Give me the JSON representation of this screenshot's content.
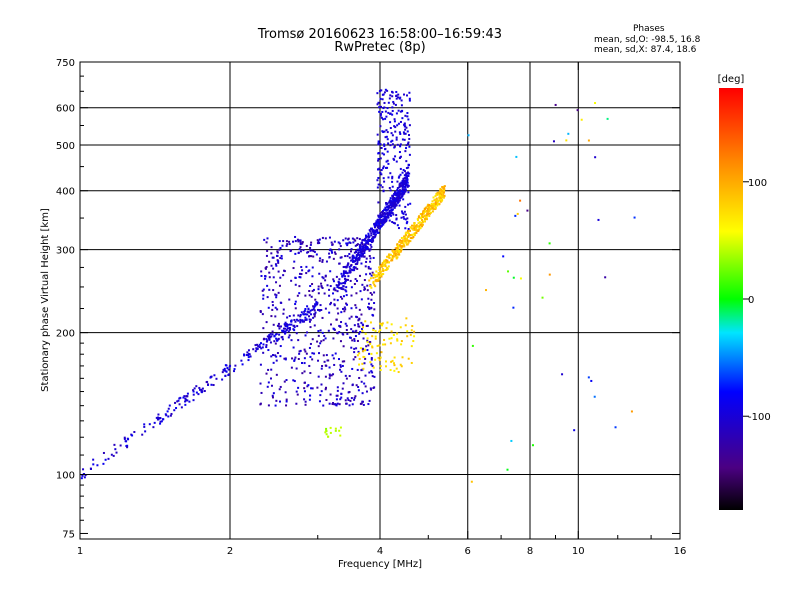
{
  "chart_data": {
    "type": "scatter",
    "title": "Tromsø 20160623 16:58:00–16:59:43",
    "subtitle": "RwPretec (8p)",
    "xlabel": "Frequency [MHz]",
    "ylabel": "Stationary phase Virtual Height [km]",
    "x_scale": "log",
    "y_scale": "log",
    "xlim": [
      1,
      16
    ],
    "ylim": [
      73,
      750
    ],
    "x_ticks": [
      1,
      2,
      4,
      6,
      8,
      10,
      16
    ],
    "y_ticks": [
      75,
      100,
      200,
      300,
      400,
      500,
      600,
      750
    ],
    "grid": true,
    "colorbar": {
      "label": "[deg]",
      "range": [
        -180,
        180
      ],
      "ticks": [
        -100,
        0,
        100
      ]
    },
    "phases_header": "Phases",
    "phases_stats": [
      "mean, sd,O: -98.5, 16.8",
      "mean, sd,X:  87.4, 18.6"
    ],
    "series": [
      {
        "mode": "O",
        "phase": -98.5
      },
      {
        "mode": "X",
        "phase": 87.4
      }
    ]
  }
}
